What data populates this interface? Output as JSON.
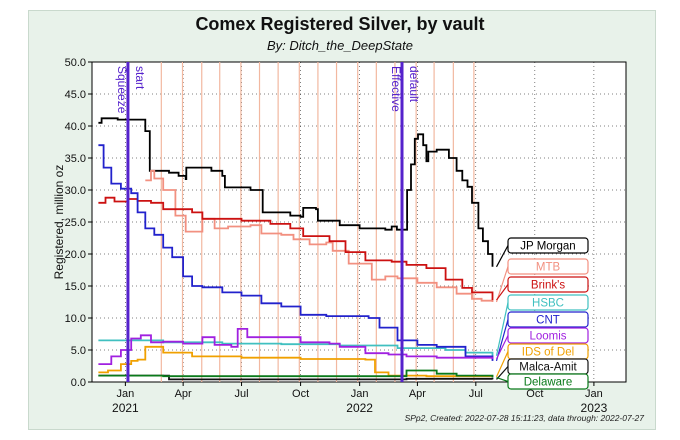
{
  "header": {
    "title": "Comex Registered Silver, by vault",
    "subtitle": "By:  Ditch_the_DeepState"
  },
  "footer": {
    "text": "SPp2, Created: 2022-07-28 15:11:23, data through: 2022-07-27"
  },
  "colors": {
    "panel": "#e8f2ea",
    "plot_bg": "#ffffff",
    "grid": "#000000",
    "event_line": "#5522cc",
    "weekly_line": "#f2b8a0"
  },
  "chart_data": {
    "type": "line",
    "title": "Comex Registered Silver, by vault",
    "subtitle": "By:  Ditch_the_DeepState",
    "ylabel": "Registered, million oz",
    "xlabel": "",
    "ylim": [
      0,
      50
    ],
    "xlim": [
      "2020-11-10",
      "2023-02-20"
    ],
    "yticks": [
      "0.0",
      "5.0",
      "10.0",
      "15.0",
      "20.0",
      "25.0",
      "30.0",
      "35.0",
      "40.0",
      "45.0",
      "50.0"
    ],
    "xticks": [
      {
        "date": "2021-01-01",
        "label": "Jan"
      },
      {
        "date": "2021-04-01",
        "label": "Apr"
      },
      {
        "date": "2021-07-01",
        "label": "Jul"
      },
      {
        "date": "2021-10-01",
        "label": "Oct"
      },
      {
        "date": "2022-01-01",
        "label": "Jan"
      },
      {
        "date": "2022-04-01",
        "label": "Apr"
      },
      {
        "date": "2022-07-01",
        "label": "Jul"
      },
      {
        "date": "2022-10-01",
        "label": "Oct"
      },
      {
        "date": "2023-01-01",
        "label": "Jan"
      }
    ],
    "year_labels": [
      {
        "date": "2021-01-01",
        "label": "2021"
      },
      {
        "date": "2022-01-01",
        "label": "2022"
      },
      {
        "date": "2023-01-01",
        "label": "2023"
      }
    ],
    "grid": true,
    "event_lines": [
      {
        "date": "2021-01-05",
        "labels": [
          "Squeeze",
          "start"
        ]
      },
      {
        "date": "2022-03-08",
        "labels": [
          "Effective",
          "default"
        ]
      }
    ],
    "weekly_markers": [
      "2021-02-26",
      "2021-03-31",
      "2021-04-30",
      "2021-05-28",
      "2021-06-30",
      "2021-07-29",
      "2021-08-27",
      "2021-09-29",
      "2021-10-28",
      "2021-11-26",
      "2021-12-29",
      "2022-01-27",
      "2022-02-25",
      "2022-03-30",
      "2022-04-27",
      "2022-05-27",
      "2022-06-28"
    ],
    "series": [
      {
        "name": "JP Morgan",
        "color": "#000000",
        "points": [
          [
            "2020-11-20",
            40.5
          ],
          [
            "2020-11-25",
            41.2
          ],
          [
            "2020-12-20",
            41.0
          ],
          [
            "2021-01-20",
            41.0
          ],
          [
            "2021-02-01",
            39.2
          ],
          [
            "2021-02-08",
            33.0
          ],
          [
            "2021-03-10",
            32.7
          ],
          [
            "2021-03-25",
            32.2
          ],
          [
            "2021-04-05",
            31.7
          ],
          [
            "2021-04-06",
            33.5
          ],
          [
            "2021-05-15",
            33.0
          ],
          [
            "2021-06-01",
            32.2
          ],
          [
            "2021-06-05",
            30.4
          ],
          [
            "2021-07-15",
            30.0
          ],
          [
            "2021-08-01",
            30.0
          ],
          [
            "2021-08-03",
            26.5
          ],
          [
            "2021-09-15",
            26.0
          ],
          [
            "2021-10-01",
            25.8
          ],
          [
            "2021-10-05",
            27.2
          ],
          [
            "2021-10-25",
            27.0
          ],
          [
            "2021-10-28",
            25.2
          ],
          [
            "2021-12-01",
            24.5
          ],
          [
            "2022-01-01",
            24.0
          ],
          [
            "2022-02-10",
            23.8
          ],
          [
            "2022-02-20",
            24.3
          ],
          [
            "2022-02-28",
            23.8
          ],
          [
            "2022-03-12",
            23.8
          ],
          [
            "2022-03-16",
            30.0
          ],
          [
            "2022-03-22",
            34.0
          ],
          [
            "2022-03-28",
            38.0
          ],
          [
            "2022-04-02",
            38.7
          ],
          [
            "2022-04-10",
            37.0
          ],
          [
            "2022-04-15",
            34.5
          ],
          [
            "2022-04-18",
            36.0
          ],
          [
            "2022-05-01",
            36.3
          ],
          [
            "2022-05-20",
            35.0
          ],
          [
            "2022-06-01",
            33.0
          ],
          [
            "2022-06-10",
            31.5
          ],
          [
            "2022-06-18",
            30.5
          ],
          [
            "2022-06-25",
            28.0
          ],
          [
            "2022-07-05",
            24.0
          ],
          [
            "2022-07-12",
            22.0
          ],
          [
            "2022-07-20",
            20.0
          ],
          [
            "2022-07-27",
            18.0
          ]
        ]
      },
      {
        "name": "MTB",
        "color": "#f29080",
        "points": [
          [
            "2021-02-01",
            31.5
          ],
          [
            "2021-02-10",
            33.0
          ],
          [
            "2021-02-15",
            31.8
          ],
          [
            "2021-03-01",
            30.0
          ],
          [
            "2021-03-20",
            26.0
          ],
          [
            "2021-04-05",
            23.5
          ],
          [
            "2021-04-20",
            23.5
          ],
          [
            "2021-05-01",
            25.5
          ],
          [
            "2021-05-20",
            24.0
          ],
          [
            "2021-06-10",
            24.3
          ],
          [
            "2021-07-15",
            24.5
          ],
          [
            "2021-08-01",
            23.2
          ],
          [
            "2021-09-01",
            23.0
          ],
          [
            "2021-09-20",
            22.3
          ],
          [
            "2021-10-15",
            21.5
          ],
          [
            "2021-11-10",
            21.8
          ],
          [
            "2021-11-20",
            20.5
          ],
          [
            "2021-12-15",
            18.5
          ],
          [
            "2022-01-01",
            18.5
          ],
          [
            "2022-01-20",
            16.0
          ],
          [
            "2022-02-10",
            16.5
          ],
          [
            "2022-03-01",
            16.2
          ],
          [
            "2022-04-01",
            15.5
          ],
          [
            "2022-05-01",
            14.8
          ],
          [
            "2022-06-01",
            13.8
          ],
          [
            "2022-06-25",
            13.0
          ],
          [
            "2022-07-10",
            12.7
          ],
          [
            "2022-07-27",
            12.5
          ]
        ]
      },
      {
        "name": "Brink's",
        "color": "#cc1111",
        "points": [
          [
            "2020-11-20",
            28.0
          ],
          [
            "2020-12-01",
            28.8
          ],
          [
            "2020-12-15",
            28.2
          ],
          [
            "2021-01-05",
            28.6
          ],
          [
            "2021-01-20",
            28.3
          ],
          [
            "2021-02-10",
            28.0
          ],
          [
            "2021-03-01",
            27.0
          ],
          [
            "2021-04-15",
            26.5
          ],
          [
            "2021-05-01",
            25.5
          ],
          [
            "2021-07-01",
            25.2
          ],
          [
            "2021-08-15",
            24.7
          ],
          [
            "2021-09-15",
            24.0
          ],
          [
            "2021-10-05",
            22.8
          ],
          [
            "2021-11-15",
            22.0
          ],
          [
            "2021-12-10",
            20.3
          ],
          [
            "2022-01-10",
            19.0
          ],
          [
            "2022-02-20",
            18.8
          ],
          [
            "2022-03-15",
            18.3
          ],
          [
            "2022-04-15",
            17.8
          ],
          [
            "2022-05-15",
            16.0
          ],
          [
            "2022-06-10",
            14.7
          ],
          [
            "2022-06-25",
            14.0
          ],
          [
            "2022-07-27",
            12.8
          ]
        ]
      },
      {
        "name": "HSBC",
        "color": "#40c0c0",
        "points": [
          [
            "2020-11-20",
            6.5
          ],
          [
            "2021-01-05",
            6.5
          ],
          [
            "2021-03-01",
            6.2
          ],
          [
            "2021-06-01",
            6.0
          ],
          [
            "2021-09-01",
            5.9
          ],
          [
            "2021-12-01",
            5.7
          ],
          [
            "2022-03-01",
            5.3
          ],
          [
            "2022-05-15",
            5.0
          ],
          [
            "2022-06-15",
            4.6
          ],
          [
            "2022-07-27",
            4.1
          ]
        ]
      },
      {
        "name": "CNT",
        "color": "#2222cc",
        "points": [
          [
            "2020-11-20",
            37.0
          ],
          [
            "2020-11-28",
            33.5
          ],
          [
            "2020-12-10",
            31.0
          ],
          [
            "2020-12-25",
            30.2
          ],
          [
            "2021-01-10",
            29.5
          ],
          [
            "2021-01-20",
            26.5
          ],
          [
            "2021-02-01",
            24.0
          ],
          [
            "2021-02-15",
            23.0
          ],
          [
            "2021-03-01",
            21.0
          ],
          [
            "2021-03-15",
            19.5
          ],
          [
            "2021-04-01",
            16.5
          ],
          [
            "2021-04-15",
            15.0
          ],
          [
            "2021-05-01",
            14.8
          ],
          [
            "2021-06-01",
            14.0
          ],
          [
            "2021-07-01",
            13.5
          ],
          [
            "2021-08-01",
            12.3
          ],
          [
            "2021-09-01",
            11.8
          ],
          [
            "2021-10-01",
            10.5
          ],
          [
            "2021-11-10",
            10.3
          ],
          [
            "2022-01-15",
            10.0
          ],
          [
            "2022-02-01",
            8.5
          ],
          [
            "2022-03-01",
            6.5
          ],
          [
            "2022-04-01",
            5.8
          ],
          [
            "2022-05-01",
            5.5
          ],
          [
            "2022-06-15",
            4.0
          ],
          [
            "2022-07-27",
            3.3
          ]
        ]
      },
      {
        "name": "Loomis",
        "color": "#a020e0",
        "points": [
          [
            "2020-11-20",
            2.8
          ],
          [
            "2020-12-10",
            4.0
          ],
          [
            "2020-12-25",
            5.0
          ],
          [
            "2021-01-10",
            6.8
          ],
          [
            "2021-01-25",
            7.3
          ],
          [
            "2021-02-10",
            6.2
          ],
          [
            "2021-03-01",
            6.3
          ],
          [
            "2021-04-01",
            6.0
          ],
          [
            "2021-05-01",
            7.0
          ],
          [
            "2021-05-20",
            5.8
          ],
          [
            "2021-06-15",
            5.5
          ],
          [
            "2021-06-25",
            8.3
          ],
          [
            "2021-07-10",
            7.0
          ],
          [
            "2021-09-01",
            7.0
          ],
          [
            "2021-10-01",
            6.2
          ],
          [
            "2021-11-15",
            6.0
          ],
          [
            "2021-12-01",
            5.5
          ],
          [
            "2022-01-10",
            4.5
          ],
          [
            "2022-02-15",
            4.3
          ],
          [
            "2022-03-15",
            4.0
          ],
          [
            "2022-05-01",
            3.8
          ],
          [
            "2022-07-27",
            3.6
          ]
        ]
      },
      {
        "name": "IDS of Del",
        "color": "#f0a000",
        "points": [
          [
            "2020-11-20",
            1.5
          ],
          [
            "2020-12-05",
            1.8
          ],
          [
            "2020-12-25",
            2.8
          ],
          [
            "2021-01-10",
            3.3
          ],
          [
            "2021-01-20",
            3.5
          ],
          [
            "2021-02-01",
            5.5
          ],
          [
            "2021-03-01",
            4.6
          ],
          [
            "2021-04-15",
            4.0
          ],
          [
            "2021-07-01",
            3.8
          ],
          [
            "2021-10-01",
            3.6
          ],
          [
            "2022-01-10",
            3.5
          ],
          [
            "2022-01-25",
            1.5
          ],
          [
            "2022-02-15",
            1.0
          ],
          [
            "2022-04-15",
            0.9
          ],
          [
            "2022-07-27",
            0.8
          ]
        ]
      },
      {
        "name": "Malca-Amit",
        "color": "#111111",
        "points": [
          [
            "2020-11-20",
            1.0
          ],
          [
            "2021-02-01",
            1.0
          ],
          [
            "2021-03-10",
            0.4
          ],
          [
            "2021-09-01",
            0.4
          ],
          [
            "2022-01-01",
            0.4
          ],
          [
            "2022-03-15",
            0.5
          ],
          [
            "2022-05-01",
            0.5
          ],
          [
            "2022-07-27",
            0.4
          ]
        ]
      },
      {
        "name": "Delaware",
        "color": "#0a7a1a",
        "points": [
          [
            "2020-11-20",
            1.0
          ],
          [
            "2021-02-10",
            1.0
          ],
          [
            "2021-03-01",
            0.9
          ],
          [
            "2022-03-10",
            0.9
          ],
          [
            "2022-03-15",
            1.8
          ],
          [
            "2022-05-01",
            1.3
          ],
          [
            "2022-06-01",
            1.0
          ],
          [
            "2022-07-27",
            0.7
          ]
        ]
      }
    ],
    "legend_boxes": [
      {
        "label": "JP Morgan",
        "color": "#000000",
        "series_end_value": 18.0
      },
      {
        "label": "MTB",
        "color": "#f29080",
        "series_end_value": 12.5
      },
      {
        "label": "Brink's",
        "color": "#cc1111",
        "series_end_value": 12.8
      },
      {
        "label": "HSBC",
        "color": "#40c0c0",
        "series_end_value": 4.1
      },
      {
        "label": "CNT",
        "color": "#2222cc",
        "series_end_value": 3.3
      },
      {
        "label": "Loomis",
        "color": "#a020e0",
        "series_end_value": 3.6
      },
      {
        "label": "IDS of Del",
        "color": "#f0a000",
        "series_end_value": 0.8
      },
      {
        "label": "Malca-Amit",
        "color": "#111111",
        "series_end_value": 0.4
      },
      {
        "label": "Delaware",
        "color": "#0a7a1a",
        "series_end_value": 0.7
      }
    ]
  }
}
